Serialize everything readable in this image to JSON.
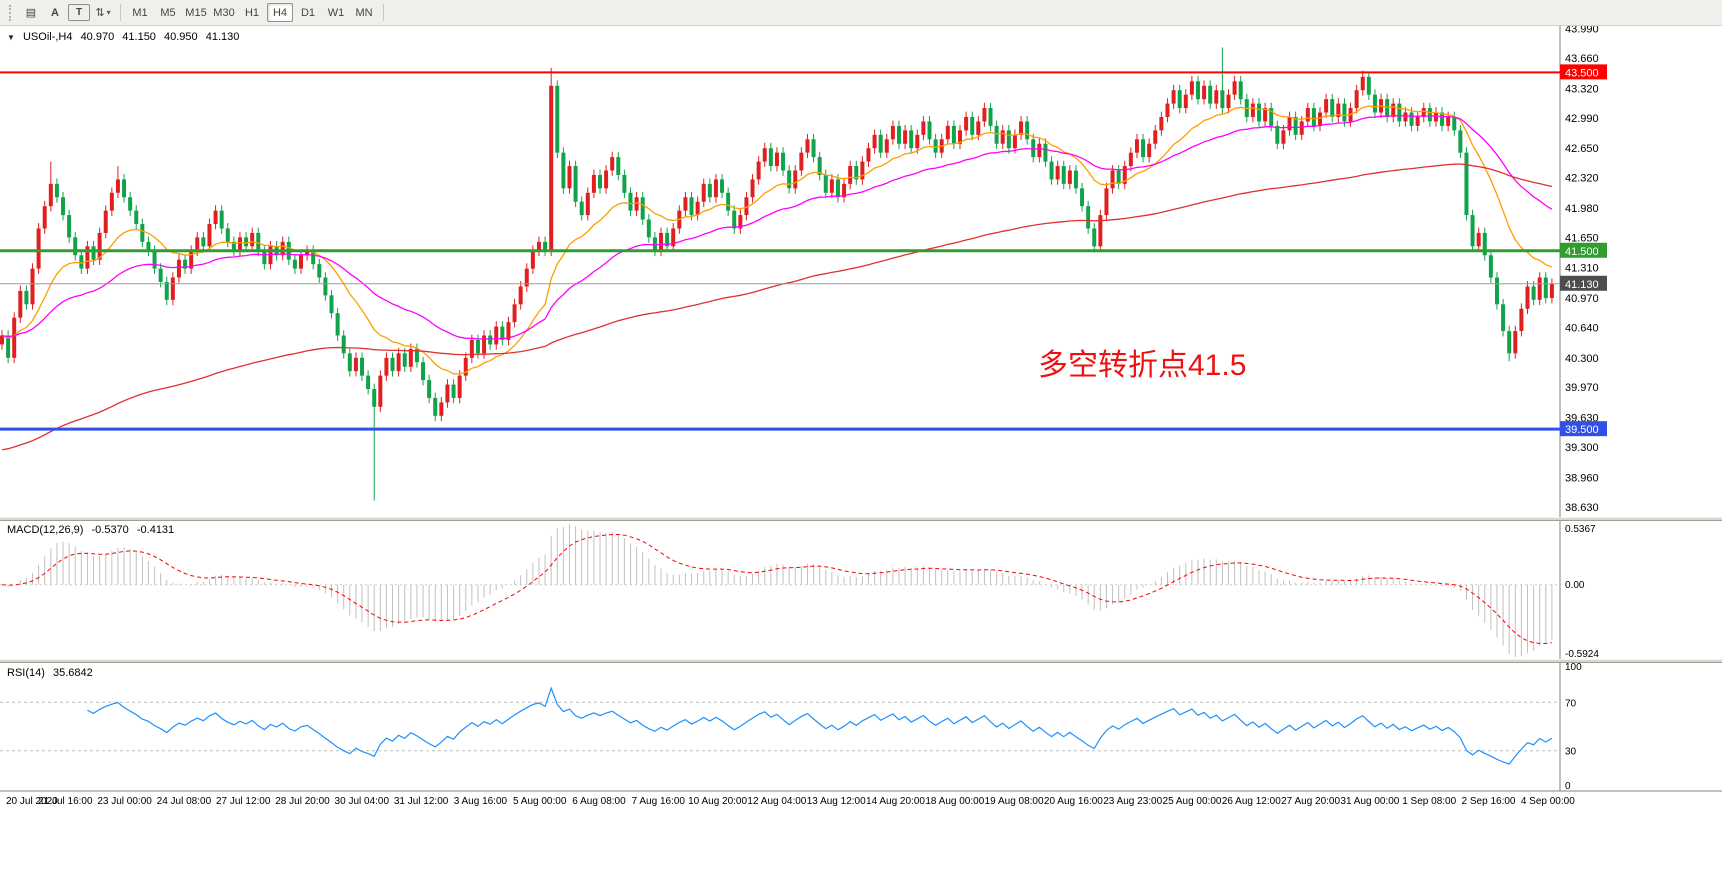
{
  "toolbar": {
    "icons": [
      {
        "name": "indicator-list-button",
        "glyph": "▤"
      },
      {
        "name": "annotate-text-button",
        "glyph": "A"
      },
      {
        "name": "textbox-tool-button",
        "glyph": "T"
      },
      {
        "name": "chart-objects-dropdown",
        "glyph": "⇅",
        "caret": "▾"
      }
    ],
    "timeframes": [
      "M1",
      "M5",
      "M15",
      "M30",
      "H1",
      "H4",
      "D1",
      "W1",
      "MN"
    ],
    "active_timeframe": "H4"
  },
  "chart_header": {
    "dropdown_glyph": "▼",
    "symbol_period": "USOil-,H4",
    "open": "40.970",
    "high": "41.150",
    "low": "40.950",
    "close": "41.130"
  },
  "main_chart": {
    "y_ticks": [
      "43.990",
      "43.660",
      "43.320",
      "42.990",
      "42.650",
      "42.320",
      "41.980",
      "41.650",
      "41.310",
      "40.970",
      "40.640",
      "40.300",
      "39.970",
      "39.630",
      "39.300",
      "38.960",
      "38.630"
    ],
    "levels": [
      {
        "name": "resistance-line",
        "value": 43.5,
        "label": "43.500",
        "color": "#fe0000",
        "width": 2
      },
      {
        "name": "pivot-line",
        "value": 41.5,
        "label": "41.500",
        "color": "#2f9e2f",
        "width": 3
      },
      {
        "name": "support-line",
        "value": 39.5,
        "label": "39.500",
        "color": "#3050e8",
        "width": 3
      }
    ],
    "current_price": {
      "value": 41.13,
      "label": "41.130",
      "line_color": "#9a9a9a",
      "label_bg": "#4d4d4d"
    },
    "annotation": {
      "text": "多空转折点41.5",
      "color": "#ee1111"
    }
  },
  "macd_panel": {
    "title": "MACD(12,26,9)",
    "value_macd": "-0.5370",
    "value_signal": "-0.4131",
    "y_ticks": [
      "0.5367",
      "0.00",
      "-0.5924"
    ]
  },
  "rsi_panel": {
    "title": "RSI(14)",
    "value": "35.6842",
    "y_ticks": [
      "100",
      "70",
      "30",
      "0"
    ],
    "levels": [
      70,
      30
    ]
  },
  "x_axis": {
    "labels": [
      "20 Jul 2020",
      "21 Jul 16:00",
      "23 Jul 00:00",
      "24 Jul 08:00",
      "27 Jul 12:00",
      "28 Jul 20:00",
      "30 Jul 04:00",
      "31 Jul 12:00",
      "3 Aug 16:00",
      "5 Aug 00:00",
      "6 Aug 08:00",
      "7 Aug 16:00",
      "10 Aug 20:00",
      "12 Aug 04:00",
      "13 Aug 12:00",
      "14 Aug 20:00",
      "18 Aug 00:00",
      "19 Aug 08:00",
      "20 Aug 16:00",
      "23 Aug 23:00",
      "25 Aug 00:00",
      "26 Aug 12:00",
      "27 Aug 20:00",
      "31 Aug 00:00",
      "1 Sep 08:00",
      "2 Sep 16:00",
      "4 Sep 00:00"
    ]
  },
  "chart_data": {
    "type": "candlestick",
    "symbol": "USOil",
    "timeframe": "H4",
    "last_ohlc": {
      "open": 40.97,
      "high": 41.15,
      "low": 40.95,
      "close": 41.13
    },
    "y_range": [
      38.63,
      43.99
    ],
    "up_color": "#e02020",
    "down_color": "#10a34a",
    "first_open": 40.45,
    "closes": [
      40.55,
      40.3,
      40.75,
      41.05,
      40.9,
      41.3,
      41.75,
      42.0,
      42.25,
      42.1,
      41.9,
      41.65,
      41.45,
      41.3,
      41.55,
      41.4,
      41.7,
      41.95,
      42.15,
      42.3,
      42.1,
      41.95,
      41.8,
      41.6,
      41.5,
      41.3,
      41.15,
      40.95,
      41.2,
      41.4,
      41.3,
      41.5,
      41.65,
      41.55,
      41.8,
      41.95,
      41.75,
      41.6,
      41.5,
      41.65,
      41.55,
      41.7,
      41.5,
      41.35,
      41.55,
      41.45,
      41.6,
      41.4,
      41.3,
      41.45,
      41.5,
      41.35,
      41.2,
      41.0,
      40.8,
      40.55,
      40.35,
      40.15,
      40.3,
      40.1,
      39.95,
      39.75,
      40.1,
      40.3,
      40.15,
      40.35,
      40.2,
      40.4,
      40.25,
      40.05,
      39.85,
      39.65,
      39.8,
      40.0,
      39.85,
      40.1,
      40.3,
      40.5,
      40.35,
      40.55,
      40.45,
      40.65,
      40.5,
      40.7,
      40.9,
      41.1,
      41.3,
      41.5,
      41.6,
      41.5,
      43.35,
      42.6,
      42.2,
      42.45,
      42.05,
      41.9,
      42.15,
      42.35,
      42.2,
      42.4,
      42.55,
      42.35,
      42.15,
      41.95,
      42.1,
      41.85,
      41.65,
      41.5,
      41.7,
      41.55,
      41.75,
      41.95,
      42.1,
      41.9,
      42.05,
      42.25,
      42.1,
      42.3,
      42.15,
      41.95,
      41.75,
      41.9,
      42.1,
      42.3,
      42.5,
      42.65,
      42.45,
      42.6,
      42.4,
      42.2,
      42.4,
      42.6,
      42.75,
      42.55,
      42.35,
      42.15,
      42.3,
      42.1,
      42.25,
      42.45,
      42.3,
      42.5,
      42.65,
      42.8,
      42.6,
      42.75,
      42.9,
      42.7,
      42.85,
      42.65,
      42.8,
      42.95,
      42.75,
      42.6,
      42.75,
      42.9,
      42.7,
      42.85,
      43.0,
      42.8,
      42.95,
      43.1,
      42.9,
      42.7,
      42.85,
      42.65,
      42.8,
      42.95,
      42.75,
      42.55,
      42.7,
      42.5,
      42.3,
      42.45,
      42.25,
      42.4,
      42.2,
      42.0,
      41.75,
      41.55,
      41.9,
      42.2,
      42.4,
      42.25,
      42.45,
      42.6,
      42.75,
      42.55,
      42.7,
      42.85,
      43.0,
      43.15,
      43.3,
      43.1,
      43.25,
      43.4,
      43.2,
      43.35,
      43.15,
      43.3,
      43.1,
      43.25,
      43.4,
      43.2,
      43.0,
      43.15,
      42.95,
      43.1,
      42.9,
      42.7,
      42.85,
      43.0,
      42.8,
      42.95,
      43.1,
      42.9,
      43.05,
      43.2,
      43.0,
      43.15,
      42.95,
      43.1,
      43.3,
      43.45,
      43.25,
      43.05,
      43.2,
      43.0,
      43.15,
      42.95,
      43.05,
      42.9,
      43.0,
      43.1,
      42.95,
      43.05,
      42.9,
      43.0,
      42.85,
      42.6,
      41.9,
      41.55,
      41.7,
      41.45,
      41.2,
      40.9,
      40.6,
      40.35,
      40.6,
      40.85,
      41.1,
      40.95,
      41.2,
      40.97,
      41.13
    ],
    "wick_overrides": [
      {
        "i": 8,
        "high": 42.5
      },
      {
        "i": 19,
        "high": 42.45
      },
      {
        "i": 61,
        "low": 38.7
      },
      {
        "i": 90,
        "high": 43.55
      },
      {
        "i": 179,
        "low": 41.48
      },
      {
        "i": 200,
        "high": 43.78
      },
      {
        "i": 223,
        "high": 43.52
      },
      {
        "i": 247,
        "low": 40.26
      }
    ],
    "moving_averages": [
      {
        "name": "fast",
        "period": 16,
        "color": "#ff9d00"
      },
      {
        "name": "medium",
        "period": 40,
        "color": "#ff00ff"
      },
      {
        "name": "slow",
        "period": 150,
        "color": "#e03030",
        "seed": 39.25
      }
    ],
    "macd": {
      "fast": 12,
      "slow": 26,
      "signal": 9,
      "histogram_color": "#c0c0c0",
      "signal_color": "#ff0000",
      "current": "-0.5370",
      "current_signal": "-0.4131"
    },
    "rsi": {
      "period": 14,
      "color": "#1e90ff",
      "levels": [
        70,
        30
      ],
      "current": "35.6842"
    }
  }
}
